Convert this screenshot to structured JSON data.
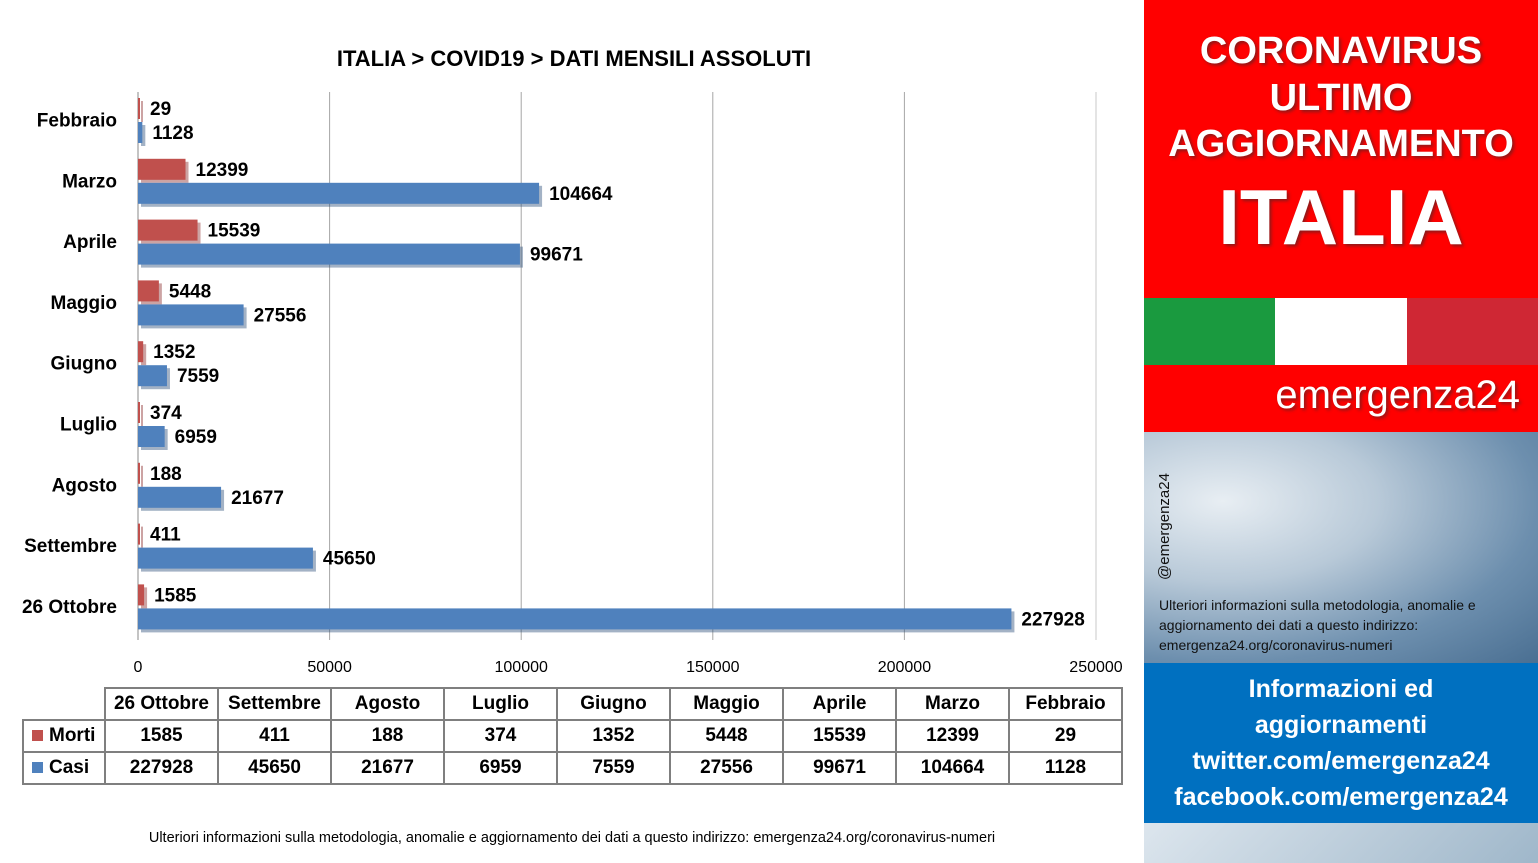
{
  "chart_data": {
    "type": "bar",
    "orientation": "horizontal",
    "title": "ITALIA >  COVID19 > DATI MENSILI  ASSOLUTI",
    "categories": [
      "Febbraio",
      "Marzo",
      "Aprile",
      "Maggio",
      "Giugno",
      "Luglio",
      "Agosto",
      "Settembre",
      "26 Ottobre"
    ],
    "series": [
      {
        "name": "Morti",
        "color": "#c0504d",
        "values": [
          29,
          12399,
          15539,
          5448,
          1352,
          374,
          188,
          411,
          1585
        ]
      },
      {
        "name": "Casi",
        "color": "#4f81bd",
        "values": [
          1128,
          104664,
          99671,
          27556,
          7559,
          6959,
          21677,
          45650,
          227928
        ]
      }
    ],
    "xlim": [
      0,
      250000
    ],
    "x_ticks": [
      "0",
      "50000",
      "100000",
      "150000",
      "200000",
      "250000"
    ],
    "tick_values": [
      0,
      50000,
      100000,
      150000,
      200000,
      250000
    ],
    "grid": true,
    "legend": "table-bottom"
  },
  "table": {
    "headers": [
      "26 Ottobre",
      "Settembre",
      "Agosto",
      "Luglio",
      "Giugno",
      "Maggio",
      "Aprile",
      "Marzo",
      "Febbraio"
    ],
    "rows": [
      {
        "label": "Morti",
        "color": "#c0504d",
        "cells": [
          "1585",
          "411",
          "188",
          "374",
          "1352",
          "5448",
          "15539",
          "12399",
          "29"
        ]
      },
      {
        "label": "Casi",
        "color": "#4f81bd",
        "cells": [
          "227928",
          "45650",
          "21677",
          "6959",
          "7559",
          "27556",
          "99671",
          "104664",
          "1128"
        ]
      }
    ]
  },
  "footnote": "Ulteriori informazioni sulla metodologia, anomalie e aggiornamento dei dati a questo indirizzo: emergenza24.org/coronavirus-numeri",
  "side": {
    "headline": [
      "CORONAVIRUS",
      "ULTIMO",
      "AGGIORNAMENTO"
    ],
    "country": "ITALIA",
    "flag_colors": [
      "#1a9a3f",
      "#ffffff",
      "#cf2734"
    ],
    "brand": "emergenza24",
    "handle": "@emergenza24",
    "note": "Ulteriori informazioni sulla metodologia, anomalie e aggiornamento dei dati a questo indirizzo: emergenza24.org/coronavirus-numeri",
    "info_lines": [
      "Informazioni ed",
      "aggiornamenti",
      "twitter.com/emergenza24",
      "facebook.com/emergenza24"
    ]
  },
  "colors": {
    "accent_red": "#ff0000",
    "accent_blue": "#0070c0"
  }
}
